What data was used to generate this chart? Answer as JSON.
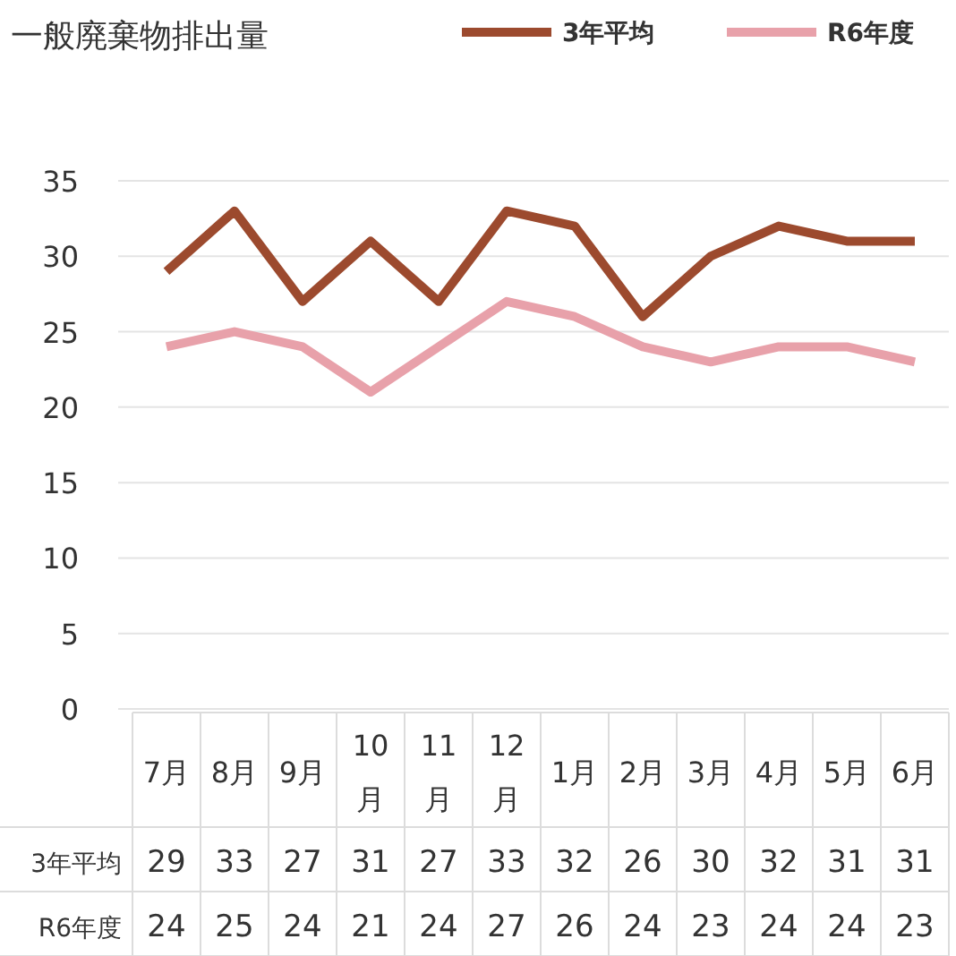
{
  "chart_data": {
    "type": "line",
    "title": "一般廃棄物排出量",
    "categories": [
      "7月",
      "8月",
      "9月",
      "10月",
      "11月",
      "12月",
      "1月",
      "2月",
      "3月",
      "4月",
      "5月",
      "6月"
    ],
    "series": [
      {
        "name": "3年平均",
        "color": "#9c4a2e",
        "values": [
          29,
          33,
          27,
          31,
          27,
          33,
          32,
          26,
          30,
          32,
          31,
          31
        ]
      },
      {
        "name": "R6年度",
        "color": "#e8a1aa",
        "values": [
          24,
          25,
          24,
          21,
          24,
          27,
          26,
          24,
          23,
          24,
          24,
          23
        ]
      }
    ],
    "ylim": [
      0,
      35
    ],
    "yticks": [
      0,
      5,
      10,
      15,
      20,
      25,
      30,
      35
    ],
    "grid": "y",
    "legend": "top right",
    "data_labels": true,
    "marker": "none",
    "line_style": "solid"
  }
}
